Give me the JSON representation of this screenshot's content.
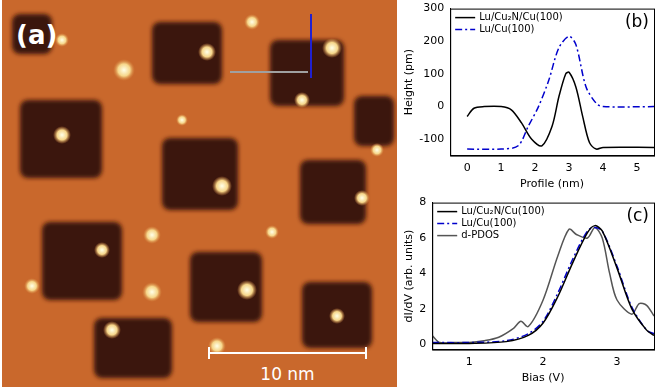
{
  "image": {
    "panel_label": "(a)",
    "scale_bar": "10 nm"
  },
  "chart_data": [
    {
      "type": "line",
      "panel_label": "(b)",
      "x_label": "Profile (nm)",
      "y_label": "Height (pm)",
      "xlim": [
        -0.5,
        5.5
      ],
      "xticks": [
        0,
        1,
        2,
        3,
        4,
        5
      ],
      "ylim": [
        -150,
        300
      ],
      "yticks": [
        -100,
        0,
        100,
        200,
        300
      ],
      "grid": false,
      "legend": "upper left",
      "series": [
        {
          "name": "Lu/Cu₂N/Cu(100)",
          "color": "#000000",
          "line_style": "solid",
          "x": [
            0,
            0.2,
            0.5,
            1.0,
            1.3,
            1.6,
            1.9,
            2.2,
            2.5,
            2.7,
            2.9,
            3.0,
            3.2,
            3.4,
            3.6,
            3.8,
            4.0,
            5.5
          ],
          "values": [
            -30,
            -5,
            0,
            0,
            -10,
            -50,
            -100,
            -120,
            -60,
            30,
            100,
            105,
            60,
            -30,
            -110,
            -130,
            -125,
            -125
          ]
        },
        {
          "name": "Lu/Cu(100)",
          "color": "#0000cc",
          "line_style": "dash-dot",
          "x": [
            0,
            1.0,
            1.5,
            1.8,
            2.1,
            2.4,
            2.7,
            3.0,
            3.2,
            3.5,
            3.8,
            4.0,
            5.5
          ],
          "values": [
            -130,
            -130,
            -120,
            -60,
            0,
            80,
            180,
            215,
            190,
            60,
            10,
            0,
            0
          ]
        }
      ]
    },
    {
      "type": "line",
      "panel_label": "(c)",
      "x_label": "Bias (V)",
      "y_label": "dI/dV (arb. units)",
      "xlim": [
        0.5,
        3.5
      ],
      "xticks": [
        1,
        2,
        3
      ],
      "ylim": [
        -0.3,
        8
      ],
      "yticks": [
        0,
        2,
        4,
        6,
        8
      ],
      "grid": false,
      "legend": "upper left",
      "series": [
        {
          "name": "Lu/Cu₂N/Cu(100)",
          "color": "#000000",
          "line_style": "solid",
          "x": [
            0.5,
            1.0,
            1.5,
            1.8,
            2.0,
            2.2,
            2.4,
            2.6,
            2.7,
            2.8,
            3.0,
            3.2,
            3.4,
            3.5
          ],
          "values": [
            0.05,
            0.05,
            0.15,
            0.5,
            1.2,
            2.7,
            4.6,
            6.3,
            6.7,
            6.4,
            4.3,
            2.0,
            0.8,
            0.5
          ]
        },
        {
          "name": "Lu/Cu(100)",
          "color": "#0000cc",
          "line_style": "dash-dot",
          "x": [
            0.5,
            1.0,
            1.5,
            1.8,
            2.0,
            2.2,
            2.4,
            2.6,
            2.7,
            2.8,
            3.0,
            3.2,
            3.4,
            3.5
          ],
          "values": [
            0.1,
            0.1,
            0.2,
            0.6,
            1.3,
            2.9,
            4.8,
            6.4,
            6.6,
            6.4,
            4.4,
            2.1,
            0.8,
            0.6
          ]
        },
        {
          "name": "d-PDOS",
          "color": "#555555",
          "line_style": "solid",
          "x": [
            0.5,
            0.6,
            0.8,
            1.0,
            1.2,
            1.4,
            1.6,
            1.7,
            1.8,
            2.0,
            2.2,
            2.35,
            2.45,
            2.6,
            2.7,
            2.8,
            2.9,
            3.0,
            3.2,
            3.3,
            3.4,
            3.5
          ],
          "values": [
            0.5,
            0.1,
            0.1,
            0.1,
            0.2,
            0.4,
            0.9,
            1.3,
            1.0,
            2.5,
            5.0,
            6.5,
            6.2,
            6.0,
            6.6,
            6.0,
            4.0,
            2.5,
            1.7,
            2.3,
            2.2,
            1.6
          ]
        }
      ]
    }
  ]
}
